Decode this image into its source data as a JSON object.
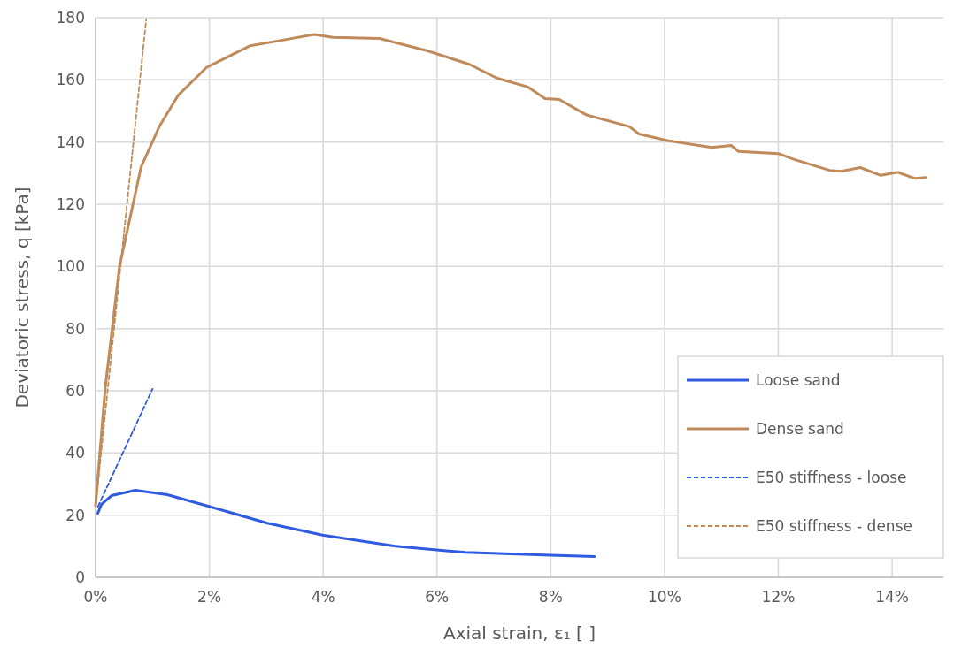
{
  "chart_data": {
    "type": "line",
    "xlabel": "Axial strain, ε₁ [ ]",
    "ylabel": "Deviatoric stress, q [kPa]",
    "xlim": [
      0,
      14.9
    ],
    "xticks": [
      {
        "value": 0,
        "label": "0%"
      },
      {
        "value": 2,
        "label": "2%"
      },
      {
        "value": 4,
        "label": "4%"
      },
      {
        "value": 6,
        "label": "6%"
      },
      {
        "value": 8,
        "label": "8%"
      },
      {
        "value": 10,
        "label": "10%"
      },
      {
        "value": 12,
        "label": "12%"
      },
      {
        "value": 14,
        "label": "14%"
      }
    ],
    "ylim": [
      0,
      180
    ],
    "yticks": [
      0,
      20,
      40,
      60,
      80,
      100,
      120,
      140,
      160,
      180
    ],
    "grid": true,
    "legend": "bottom right",
    "marker": "none",
    "series": [
      {
        "name": "Loose sand",
        "color": "#2f5be0",
        "line_style": "solid",
        "x": [
          0.04,
          0.1,
          0.28,
          0.7,
          1.26,
          1.98,
          3.02,
          3.99,
          5.27,
          6.5,
          8.0,
          8.77
        ],
        "values": [
          20.6,
          23.4,
          26.3,
          28,
          26.6,
          22.9,
          17.4,
          13.6,
          10,
          8,
          7.1,
          6.7
        ]
      },
      {
        "name": "Dense sand",
        "color": "#c08b5a",
        "line_style": "solid",
        "x": [
          0,
          0.17,
          0.42,
          0.8,
          1.12,
          1.45,
          1.95,
          2.72,
          3.35,
          3.84,
          4.17,
          4.99,
          5.82,
          6.57,
          7.05,
          7.6,
          7.9,
          8.15,
          8.63,
          9.38,
          9.55,
          10.07,
          10.83,
          11.17,
          11.3,
          12.0,
          12.28,
          12.9,
          13.1,
          13.44,
          13.8,
          14.1,
          14.4,
          14.6
        ],
        "values": [
          23,
          61,
          100,
          132,
          145,
          155,
          164,
          171,
          173,
          174.6,
          173.7,
          173.3,
          169.4,
          165,
          160.6,
          157.7,
          154,
          153.7,
          148.7,
          145,
          142.6,
          140.4,
          138.3,
          138.9,
          137,
          136.3,
          134.4,
          130.9,
          130.6,
          131.8,
          129.3,
          130.3,
          128.3,
          128.6
        ]
      },
      {
        "name": "E50 stiffness - loose",
        "color": "#2f5be0",
        "line_style": "dashed",
        "x": [
          0.04,
          1.0
        ],
        "values": [
          22.7,
          60.6
        ]
      },
      {
        "name": "E50 stiffness - dense",
        "color": "#c08b5a",
        "line_style": "dashed",
        "x": [
          0,
          0.89
        ],
        "values": [
          22.9,
          179.5
        ]
      }
    ]
  }
}
